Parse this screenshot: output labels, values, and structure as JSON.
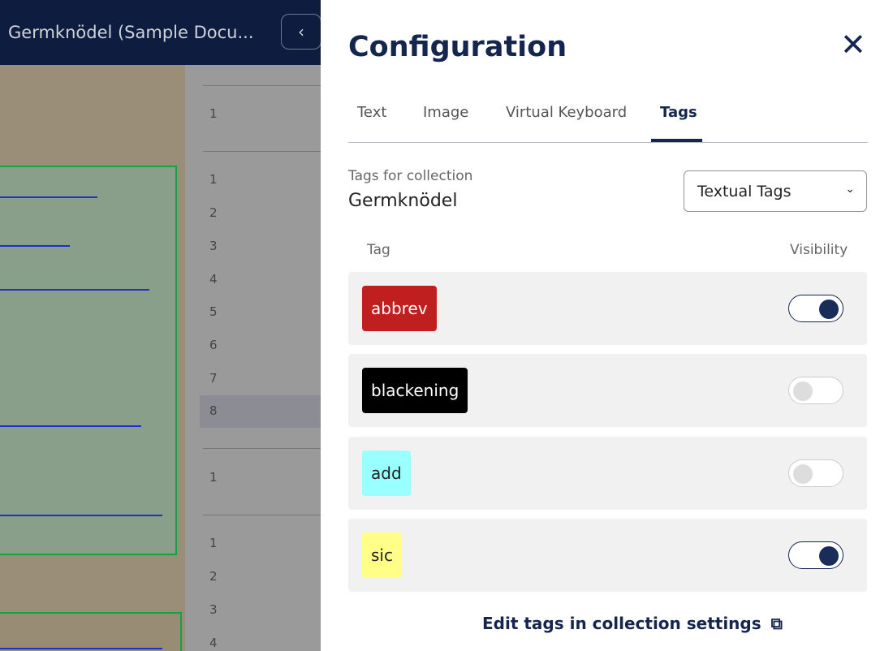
{
  "header": {
    "document_title": "Germknödel (Sample Docu...",
    "back_icon": "chevron-left-icon"
  },
  "line_numbers": {
    "groups": [
      [
        "1"
      ],
      [
        "1",
        "2",
        "3",
        "4",
        "5",
        "6",
        "7",
        "8"
      ],
      [
        "1"
      ],
      [
        "1",
        "2",
        "3",
        "4"
      ]
    ],
    "selected": "8"
  },
  "config": {
    "title": "Configuration",
    "close_icon": "close-icon",
    "tabs": [
      {
        "label": "Text"
      },
      {
        "label": "Image"
      },
      {
        "label": "Virtual Keyboard"
      },
      {
        "label": "Tags",
        "active": true
      }
    ],
    "collection_label": "Tags for collection",
    "collection_name": "Germknödel",
    "tag_type_select": {
      "value": "Textual Tags"
    },
    "columns": {
      "tag": "Tag",
      "visibility": "Visibility"
    },
    "tags": [
      {
        "name": "abbrev",
        "color": "#c01f1f",
        "text_color": "#ffffff",
        "visible": true
      },
      {
        "name": "blackening",
        "color": "#000000",
        "text_color": "#ffffff",
        "visible": false
      },
      {
        "name": "add",
        "color": "#99ffff",
        "text_color": "#222222",
        "visible": false
      },
      {
        "name": "sic",
        "color": "#ffff88",
        "text_color": "#222222",
        "visible": true
      }
    ],
    "edit_link": "Edit tags in collection settings",
    "edit_link_icon": "external-link-icon"
  }
}
